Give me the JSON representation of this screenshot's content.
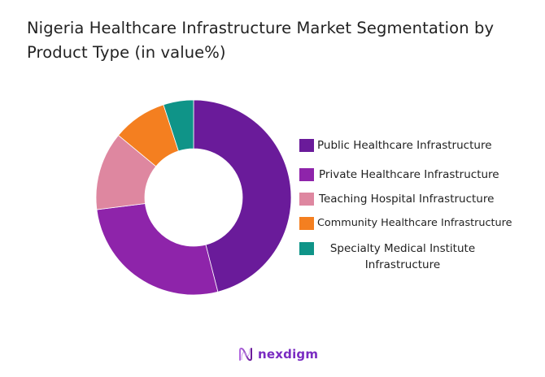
{
  "chart_data": {
    "type": "pie",
    "variant": "donut",
    "title": "Nigeria Healthcare Infrastructure Market Segmentation by Product Type (in value%)",
    "categories": [
      "Public Healthcare Infrastructure",
      "Private Healthcare Infrastructure",
      "Teaching Hospital Infrastructure",
      "Community Healthcare Infrastructure",
      "Specialty Medical Institute Infrastructure"
    ],
    "values": [
      46,
      27,
      13,
      9,
      5
    ],
    "colors": [
      "#6a1b9a",
      "#8e24aa",
      "#de87a0",
      "#f47f20",
      "#0f9488"
    ],
    "legend_position": "right",
    "data_labels": false
  },
  "title": "Nigeria Healthcare Infrastructure Market Segmentation by Product Type (in value%)",
  "legend": {
    "items": [
      {
        "label": "Public Healthcare Infrastructure",
        "color": "#6a1b9a"
      },
      {
        "label": "Private Healthcare Infrastructure",
        "color": "#8e24aa"
      },
      {
        "label": "Teaching Hospital Infrastructure",
        "color": "#de87a0"
      },
      {
        "label": "Community Healthcare Infrastructure",
        "color": "#f47f20"
      },
      {
        "label": "Specialty Medical Institute Infrastructure",
        "color": "#0f9488"
      }
    ]
  },
  "logo": {
    "text": "nexdigm",
    "icon": "nexdigm-wave-icon"
  }
}
